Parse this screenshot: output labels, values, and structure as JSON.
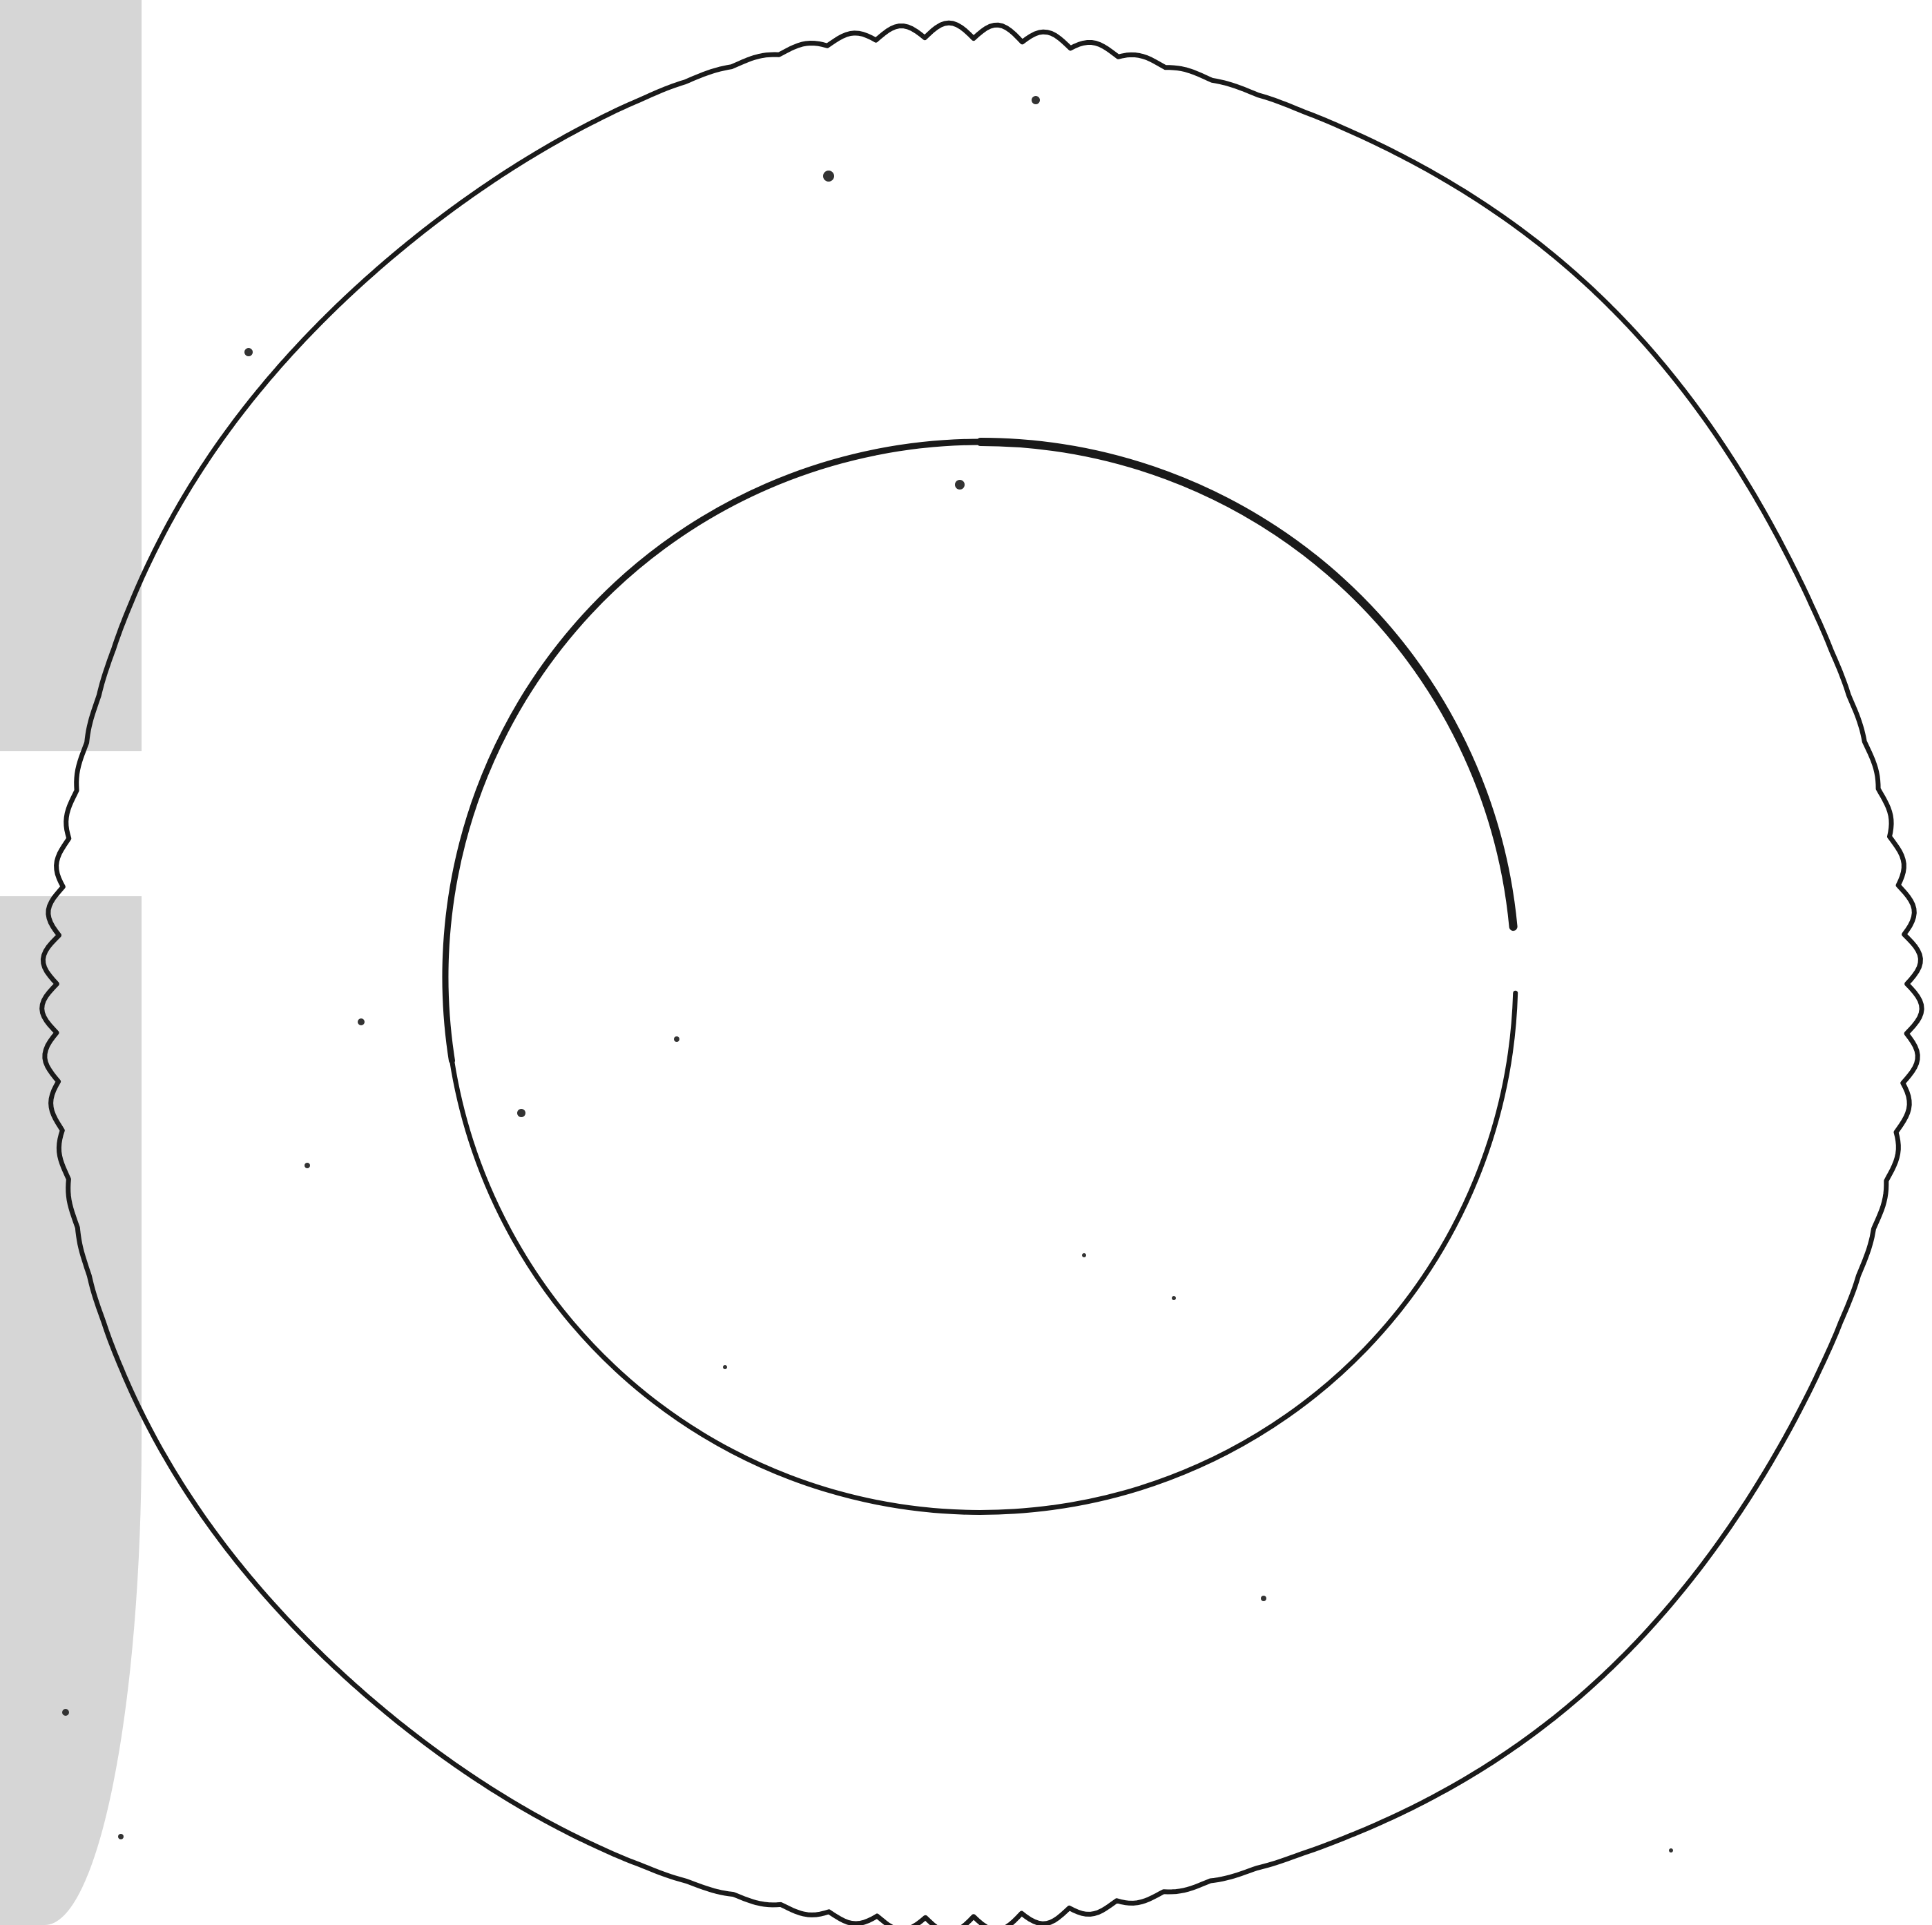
{
  "figure": {
    "subject": "ring-outline",
    "colors": {
      "ink": "#1a1a1a",
      "paper": "#ffffff",
      "scan_margin": "#d6d6d6"
    }
  }
}
